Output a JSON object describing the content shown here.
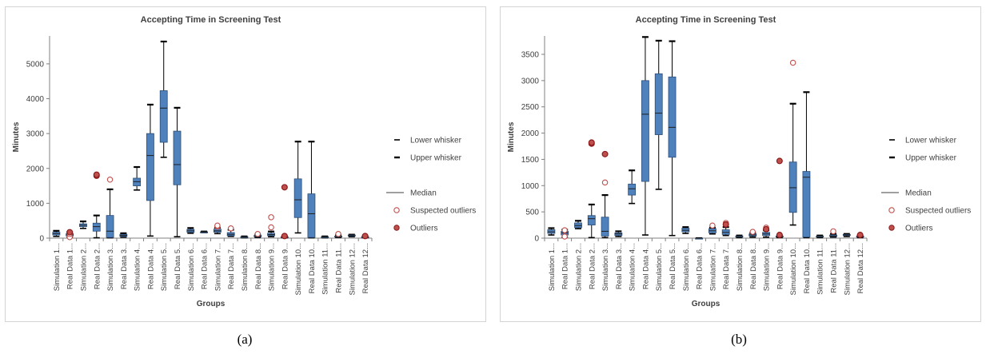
{
  "captions": [
    "(a)",
    "(b)"
  ],
  "legend": {
    "lower_whisker": "Lower whisker",
    "upper_whisker": "Upper whisker",
    "median": "Median",
    "suspected_outliers": "Suspected outliers",
    "outliers": "Outliers"
  },
  "colors": {
    "box_fill": "#4f81bd",
    "box_stroke": "#2c4d75",
    "outlier_stroke": "#c0504d",
    "outlier_fill": "#c0504d",
    "outlier_core": "#8b1a1a",
    "axis": "#808080",
    "text": "#404040"
  },
  "chart_data": [
    {
      "panel": "a",
      "type": "box",
      "title": "Accepting Time in Screening Test",
      "xlabel": "Groups",
      "ylabel": "Minutes",
      "ylim": [
        0,
        5800
      ],
      "yticks": [
        0,
        1000,
        2000,
        3000,
        4000,
        5000
      ],
      "grid": false,
      "legend_position": "right",
      "categories": [
        "Simulation 1...",
        "Real Data 1...",
        "Simulation 2...",
        "Real Data 2...",
        "Simulation 3...",
        "Real Data 3...",
        "Simulation 4...",
        "Real Data 4...",
        "Simulation 5...",
        "Real Data 5...",
        "Simulation 6...",
        "Real Data 6...",
        "Simulation 7...",
        "Real Data 7...",
        "Simulation 8...",
        "Real Data 8...",
        "Simulation 9...",
        "Real Data 9...",
        "Simulation 10...",
        "Real Data 10...",
        "Simulation 11...",
        "Real Data 11...",
        "Simulation 12...",
        "Real Data 12..."
      ],
      "boxes": [
        {
          "min": 50,
          "q1": 90,
          "median": 130,
          "q3": 170,
          "max": 210,
          "suspected": [],
          "outliers": []
        },
        {
          "min": 20,
          "q1": 60,
          "median": 100,
          "q3": 130,
          "max": 170,
          "suspected": [
            30,
            120
          ],
          "outliers": [
            170
          ]
        },
        {
          "min": 280,
          "q1": 330,
          "median": 370,
          "q3": 410,
          "max": 480,
          "suspected": [],
          "outliers": []
        },
        {
          "min": 10,
          "q1": 200,
          "median": 330,
          "q3": 430,
          "max": 650,
          "suspected": [],
          "outliers": [
            1790,
            1820
          ]
        },
        {
          "min": 10,
          "q1": 20,
          "median": 200,
          "q3": 650,
          "max": 1400,
          "suspected": [
            1680
          ],
          "outliers": []
        },
        {
          "min": 30,
          "q1": 50,
          "median": 80,
          "q3": 110,
          "max": 140,
          "suspected": [],
          "outliers": []
        },
        {
          "min": 1380,
          "q1": 1500,
          "median": 1620,
          "q3": 1720,
          "max": 2040,
          "suspected": [],
          "outliers": []
        },
        {
          "min": 60,
          "q1": 1080,
          "median": 2370,
          "q3": 3000,
          "max": 3830,
          "suspected": [],
          "outliers": []
        },
        {
          "min": 2320,
          "q1": 2750,
          "median": 3730,
          "q3": 4230,
          "max": 5640,
          "suspected": [],
          "outliers": []
        },
        {
          "min": 40,
          "q1": 1530,
          "median": 2110,
          "q3": 3070,
          "max": 3740,
          "suspected": [],
          "outliers": []
        },
        {
          "min": 140,
          "q1": 170,
          "median": 210,
          "q3": 250,
          "max": 290,
          "suspected": [],
          "outliers": []
        },
        {
          "min": 160,
          "q1": 170,
          "median": 175,
          "q3": 180,
          "max": 190,
          "suspected": [],
          "outliers": []
        },
        {
          "min": 130,
          "q1": 170,
          "median": 210,
          "q3": 260,
          "max": 300,
          "suspected": [
            330,
            360
          ],
          "outliers": []
        },
        {
          "min": 50,
          "q1": 70,
          "median": 110,
          "q3": 160,
          "max": 240,
          "suspected": [
            280
          ],
          "outliers": []
        },
        {
          "min": 10,
          "q1": 20,
          "median": 30,
          "q3": 40,
          "max": 50,
          "suspected": [],
          "outliers": []
        },
        {
          "min": 20,
          "q1": 40,
          "median": 60,
          "q3": 80,
          "max": 100,
          "suspected": [
            120
          ],
          "outliers": []
        },
        {
          "min": 40,
          "q1": 70,
          "median": 100,
          "q3": 140,
          "max": 190,
          "suspected": [
            310,
            600
          ],
          "outliers": []
        },
        {
          "min": 10,
          "q1": 20,
          "median": 30,
          "q3": 40,
          "max": 50,
          "suspected": [],
          "outliers": [
            1460,
            60
          ]
        },
        {
          "min": 150,
          "q1": 590,
          "median": 1100,
          "q3": 1700,
          "max": 2770,
          "suspected": [],
          "outliers": []
        },
        {
          "min": 10,
          "q1": 20,
          "median": 700,
          "q3": 1270,
          "max": 2770,
          "suspected": [],
          "outliers": []
        },
        {
          "min": 10,
          "q1": 20,
          "median": 30,
          "q3": 40,
          "max": 50,
          "suspected": [],
          "outliers": []
        },
        {
          "min": 20,
          "q1": 30,
          "median": 40,
          "q3": 60,
          "max": 80,
          "suspected": [
            120
          ],
          "outliers": []
        },
        {
          "min": 40,
          "q1": 60,
          "median": 80,
          "q3": 90,
          "max": 100,
          "suspected": [],
          "outliers": []
        },
        {
          "min": 10,
          "q1": 20,
          "median": 30,
          "q3": 40,
          "max": 50,
          "suspected": [],
          "outliers": [
            60
          ]
        }
      ]
    },
    {
      "panel": "b",
      "type": "box",
      "title": "Accepting Time in Screening Test",
      "xlabel": "Groups",
      "ylabel": "Minutes",
      "ylim": [
        0,
        3850
      ],
      "yticks": [
        0,
        500,
        1000,
        1500,
        2000,
        2500,
        3000,
        3500
      ],
      "grid": false,
      "legend_position": "right",
      "categories": [
        "Simulation 1...",
        "Real Data 1...",
        "Simulation 2...",
        "Real Data 2...",
        "Simulation 3...",
        "Real Data 3...",
        "Simulation 4...",
        "Real Data 4...",
        "Simulation 5...",
        "Real Data 5...",
        "Simulation 6...",
        "Real Data 6...",
        "Simulation 7...",
        "Real Data 7...",
        "Simulation 8...",
        "Real Data 8...",
        "Simulation 9...",
        "Real Data 9...",
        "Simulation 10...",
        "Real Data 10...",
        "Simulation 11...",
        "Real Data 11...",
        "Simulation 12...",
        "Real Data 12..."
      ],
      "boxes": [
        {
          "min": 60,
          "q1": 90,
          "median": 120,
          "q3": 160,
          "max": 190,
          "suspected": [],
          "outliers": []
        },
        {
          "min": 20,
          "q1": 60,
          "median": 100,
          "q3": 130,
          "max": 160,
          "suspected": [
            30,
            150
          ],
          "outliers": []
        },
        {
          "min": 180,
          "q1": 200,
          "median": 240,
          "q3": 290,
          "max": 330,
          "suspected": [],
          "outliers": []
        },
        {
          "min": 10,
          "q1": 250,
          "median": 370,
          "q3": 430,
          "max": 640,
          "suspected": [],
          "outliers": [
            1800,
            1820
          ]
        },
        {
          "min": 10,
          "q1": 40,
          "median": 130,
          "q3": 400,
          "max": 820,
          "suspected": [
            1060
          ],
          "outliers": [
            1600
          ]
        },
        {
          "min": 30,
          "q1": 50,
          "median": 80,
          "q3": 100,
          "max": 130,
          "suspected": [],
          "outliers": []
        },
        {
          "min": 660,
          "q1": 820,
          "median": 940,
          "q3": 1030,
          "max": 1290,
          "suspected": [],
          "outliers": []
        },
        {
          "min": 60,
          "q1": 1080,
          "median": 2360,
          "q3": 3000,
          "max": 3830,
          "suspected": [],
          "outliers": []
        },
        {
          "min": 930,
          "q1": 1970,
          "median": 2380,
          "q3": 3130,
          "max": 3760,
          "suspected": [],
          "outliers": []
        },
        {
          "min": 50,
          "q1": 1540,
          "median": 2110,
          "q3": 3070,
          "max": 3750,
          "suspected": [],
          "outliers": []
        },
        {
          "min": 90,
          "q1": 120,
          "median": 150,
          "q3": 190,
          "max": 210,
          "suspected": [],
          "outliers": []
        },
        {
          "min": 0,
          "q1": 0,
          "median": 0,
          "q3": 0,
          "max": 0,
          "suspected": [],
          "outliers": []
        },
        {
          "min": 80,
          "q1": 100,
          "median": 140,
          "q3": 180,
          "max": 200,
          "suspected": [
            240
          ],
          "outliers": []
        },
        {
          "min": 50,
          "q1": 70,
          "median": 110,
          "q3": 160,
          "max": 210,
          "suspected": [
            290
          ],
          "outliers": [
            260
          ]
        },
        {
          "min": 10,
          "q1": 20,
          "median": 30,
          "q3": 40,
          "max": 50,
          "suspected": [],
          "outliers": []
        },
        {
          "min": 20,
          "q1": 40,
          "median": 60,
          "q3": 80,
          "max": 100,
          "suspected": [
            120
          ],
          "outliers": []
        },
        {
          "min": 20,
          "q1": 50,
          "median": 80,
          "q3": 110,
          "max": 150,
          "suspected": [
            200
          ],
          "outliers": [
            170
          ]
        },
        {
          "min": 10,
          "q1": 20,
          "median": 30,
          "q3": 40,
          "max": 50,
          "suspected": [],
          "outliers": [
            1470,
            60
          ]
        },
        {
          "min": 250,
          "q1": 490,
          "median": 960,
          "q3": 1450,
          "max": 2560,
          "suspected": [
            3340
          ],
          "outliers": []
        },
        {
          "min": 10,
          "q1": 20,
          "median": 1160,
          "q3": 1270,
          "max": 2780,
          "suspected": [],
          "outliers": []
        },
        {
          "min": 10,
          "q1": 20,
          "median": 30,
          "q3": 40,
          "max": 50,
          "suspected": [],
          "outliers": []
        },
        {
          "min": 20,
          "q1": 30,
          "median": 40,
          "q3": 60,
          "max": 80,
          "suspected": [
            130
          ],
          "outliers": []
        },
        {
          "min": 30,
          "q1": 50,
          "median": 60,
          "q3": 70,
          "max": 80,
          "suspected": [],
          "outliers": []
        },
        {
          "min": 10,
          "q1": 20,
          "median": 30,
          "q3": 40,
          "max": 50,
          "suspected": [],
          "outliers": [
            60
          ]
        }
      ]
    }
  ]
}
